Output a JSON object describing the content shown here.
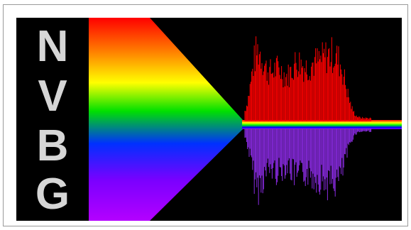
{
  "logo": {
    "letters": [
      "N",
      "V",
      "B",
      "G"
    ],
    "letter_color": "#d6d6d6",
    "background_color": "#000000"
  },
  "spectrum": {
    "colors": [
      "#ff0000",
      "#ff8000",
      "#ffff00",
      "#00ff00",
      "#0000ff",
      "#8000ff",
      "#c000ff"
    ]
  },
  "waveform": {
    "upper_color": "#ff0000",
    "lower_color": "#8a2be2"
  }
}
